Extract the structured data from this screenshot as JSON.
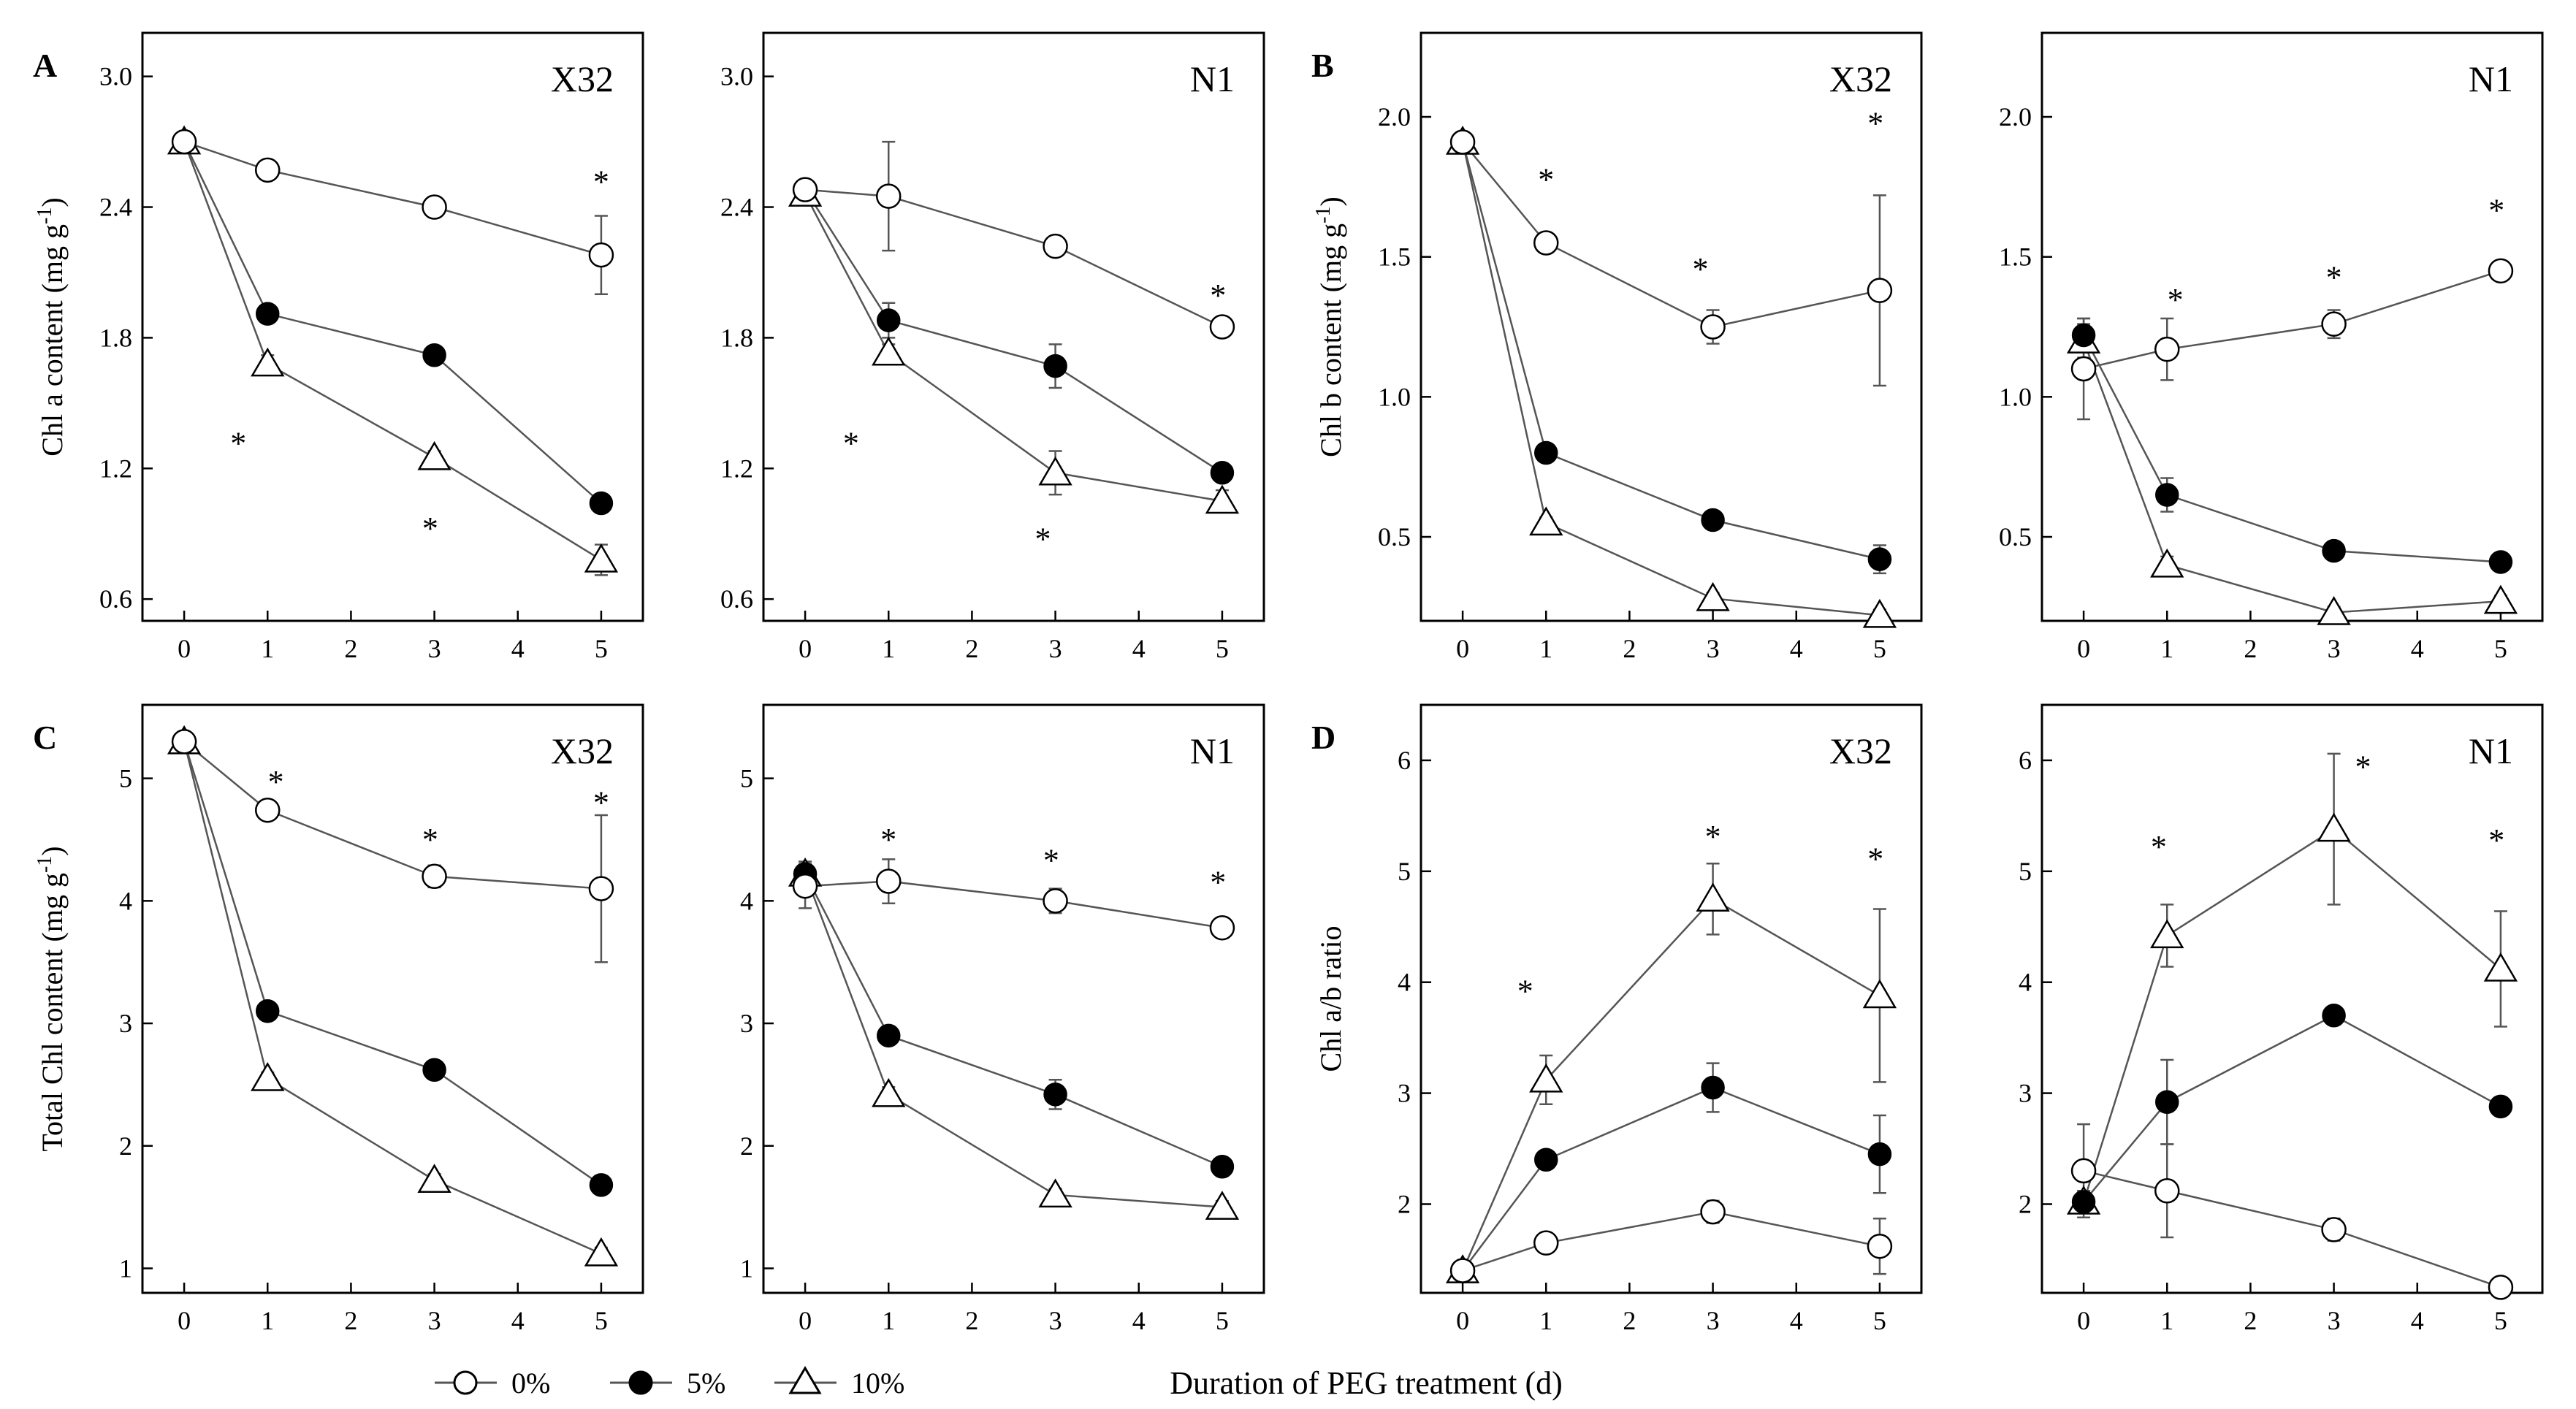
{
  "figure": {
    "xlabel": "Duration of PEG treatment (d)",
    "legend": [
      {
        "label": "0%",
        "marker": "open-circle"
      },
      {
        "label": "5%",
        "marker": "filled-circle"
      },
      {
        "label": "10%",
        "marker": "open-triangle"
      }
    ],
    "colors": {
      "line": "#555555",
      "ink": "#000000",
      "fill_open": "#ffffff"
    }
  },
  "chart_data": [
    {
      "type": "line",
      "letter": "A",
      "title": "X32",
      "ylabel": "Chl a content (mg g-1)",
      "xlim": [
        -0.5,
        5.5
      ],
      "xticks": [
        0,
        1,
        2,
        3,
        4,
        5
      ],
      "ylim": [
        0.5,
        3.2
      ],
      "yticks": [
        "0.6",
        "1.2",
        "1.8",
        "2.4",
        "3.0"
      ],
      "x": [
        0,
        1,
        3,
        5
      ],
      "series": [
        {
          "name": "0%",
          "values": [
            2.7,
            2.57,
            2.4,
            2.18
          ],
          "errors": [
            0.03,
            0.03,
            0.04,
            0.18
          ]
        },
        {
          "name": "5%",
          "values": [
            2.7,
            1.91,
            1.72,
            1.04
          ],
          "errors": [
            0.03,
            0.03,
            0.03,
            0.03
          ]
        },
        {
          "name": "10%",
          "values": [
            2.7,
            1.68,
            1.25,
            0.78
          ],
          "errors": [
            0.03,
            0.04,
            0.03,
            0.07
          ]
        }
      ],
      "stars": [
        {
          "x": 0.65,
          "y": 1.32
        },
        {
          "x": 2.95,
          "y": 0.93
        },
        {
          "x": 5.0,
          "y": 2.52
        }
      ]
    },
    {
      "type": "line",
      "letter": "",
      "title": "N1",
      "ylabel": "",
      "xlim": [
        -0.5,
        5.5
      ],
      "xticks": [
        0,
        1,
        2,
        3,
        4,
        5
      ],
      "ylim": [
        0.5,
        3.2
      ],
      "yticks": [
        "0.6",
        "1.2",
        "1.8",
        "2.4",
        "3.0"
      ],
      "x": [
        0,
        1,
        3,
        5
      ],
      "series": [
        {
          "name": "0%",
          "values": [
            2.48,
            2.45,
            2.22,
            1.85
          ],
          "errors": [
            0.03,
            0.25,
            0.04,
            0.03
          ]
        },
        {
          "name": "5%",
          "values": [
            2.48,
            1.88,
            1.67,
            1.18
          ],
          "errors": [
            0.03,
            0.08,
            0.1,
            0.03
          ]
        },
        {
          "name": "10%",
          "values": [
            2.46,
            1.73,
            1.18,
            1.05
          ],
          "errors": [
            0.03,
            0.04,
            0.1,
            0.05
          ]
        }
      ],
      "stars": [
        {
          "x": 0.55,
          "y": 1.32
        },
        {
          "x": 2.85,
          "y": 0.88
        },
        {
          "x": 4.95,
          "y": 2.0
        }
      ]
    },
    {
      "type": "line",
      "letter": "B",
      "title": "X32",
      "ylabel": "Chl b content (mg g-1)",
      "xlim": [
        -0.5,
        5.5
      ],
      "xticks": [
        0,
        1,
        2,
        3,
        4,
        5
      ],
      "ylim": [
        0.2,
        2.3
      ],
      "yticks": [
        "0.5",
        "1.0",
        "1.5",
        "2.0"
      ],
      "x": [
        0,
        1,
        3,
        5
      ],
      "series": [
        {
          "name": "0%",
          "values": [
            1.91,
            1.55,
            1.25,
            1.38
          ],
          "errors": [
            0.02,
            0.02,
            0.06,
            0.34
          ]
        },
        {
          "name": "5%",
          "values": [
            1.91,
            0.8,
            0.56,
            0.42
          ],
          "errors": [
            0.02,
            0.02,
            0.02,
            0.05
          ]
        },
        {
          "name": "10%",
          "values": [
            1.91,
            0.55,
            0.28,
            0.22
          ],
          "errors": [
            0.02,
            0.02,
            0.02,
            0.02
          ]
        }
      ],
      "stars": [
        {
          "x": 1.0,
          "y": 1.78
        },
        {
          "x": 2.85,
          "y": 1.46
        },
        {
          "x": 4.95,
          "y": 1.98
        }
      ]
    },
    {
      "type": "line",
      "letter": "",
      "title": "N1",
      "ylabel": "",
      "xlim": [
        -0.5,
        5.5
      ],
      "xticks": [
        0,
        1,
        2,
        3,
        4,
        5
      ],
      "ylim": [
        0.2,
        2.3
      ],
      "yticks": [
        "0.5",
        "1.0",
        "1.5",
        "2.0"
      ],
      "x": [
        0,
        1,
        3,
        5
      ],
      "series": [
        {
          "name": "0%",
          "values": [
            1.1,
            1.17,
            1.26,
            1.45
          ],
          "errors": [
            0.18,
            0.11,
            0.05,
            0.03
          ]
        },
        {
          "name": "5%",
          "values": [
            1.22,
            0.65,
            0.45,
            0.41
          ],
          "errors": [
            0.06,
            0.06,
            0.03,
            0.03
          ]
        },
        {
          "name": "10%",
          "values": [
            1.2,
            0.4,
            0.23,
            0.27
          ],
          "errors": [
            0.06,
            0.03,
            0.02,
            0.02
          ]
        }
      ],
      "stars": [
        {
          "x": 1.1,
          "y": 1.35
        },
        {
          "x": 3.0,
          "y": 1.43
        },
        {
          "x": 4.95,
          "y": 1.67
        }
      ]
    },
    {
      "type": "line",
      "letter": "C",
      "title": "X32",
      "ylabel": "Total Chl content (mg g-1)",
      "xlim": [
        -0.5,
        5.5
      ],
      "xticks": [
        0,
        1,
        2,
        3,
        4,
        5
      ],
      "ylim": [
        0.8,
        5.6
      ],
      "yticks": [
        "1",
        "2",
        "3",
        "4",
        "5"
      ],
      "x": [
        0,
        1,
        3,
        5
      ],
      "series": [
        {
          "name": "0%",
          "values": [
            5.3,
            4.74,
            4.2,
            4.1
          ],
          "errors": [
            0.05,
            0.05,
            0.09,
            0.6
          ]
        },
        {
          "name": "5%",
          "values": [
            5.3,
            3.1,
            2.62,
            1.68
          ],
          "errors": [
            0.05,
            0.05,
            0.05,
            0.05
          ]
        },
        {
          "name": "10%",
          "values": [
            5.3,
            2.55,
            1.72,
            1.12
          ],
          "errors": [
            0.05,
            0.05,
            0.05,
            0.05
          ]
        }
      ],
      "stars": [
        {
          "x": 1.1,
          "y": 4.98
        },
        {
          "x": 2.95,
          "y": 4.51
        },
        {
          "x": 5.0,
          "y": 4.81
        }
      ]
    },
    {
      "type": "line",
      "letter": "",
      "title": "N1",
      "ylabel": "",
      "xlim": [
        -0.5,
        5.5
      ],
      "xticks": [
        0,
        1,
        2,
        3,
        4,
        5
      ],
      "ylim": [
        0.8,
        5.6
      ],
      "yticks": [
        "1",
        "2",
        "3",
        "4",
        "5"
      ],
      "x": [
        0,
        1,
        3,
        5
      ],
      "series": [
        {
          "name": "0%",
          "values": [
            4.12,
            4.16,
            4.0,
            3.78
          ],
          "errors": [
            0.18,
            0.18,
            0.1,
            0.08
          ]
        },
        {
          "name": "5%",
          "values": [
            4.22,
            2.9,
            2.42,
            1.83
          ],
          "errors": [
            0.1,
            0.06,
            0.12,
            0.05
          ]
        },
        {
          "name": "10%",
          "values": [
            4.22,
            2.42,
            1.6,
            1.5
          ],
          "errors": [
            0.1,
            0.06,
            0.05,
            0.05
          ]
        }
      ],
      "stars": [
        {
          "x": 1.0,
          "y": 4.51
        },
        {
          "x": 2.95,
          "y": 4.34
        },
        {
          "x": 4.95,
          "y": 4.16
        }
      ]
    },
    {
      "type": "line",
      "letter": "D",
      "title": "X32",
      "ylabel": "Chl a/b ratio",
      "xlim": [
        -0.5,
        5.5
      ],
      "xticks": [
        0,
        1,
        2,
        3,
        4,
        5
      ],
      "ylim": [
        1.2,
        6.5
      ],
      "yticks": [
        "2",
        "3",
        "4",
        "5",
        "6"
      ],
      "x": [
        0,
        1,
        3,
        5
      ],
      "series": [
        {
          "name": "0%",
          "values": [
            1.4,
            1.65,
            1.93,
            1.62
          ],
          "errors": [
            0.05,
            0.08,
            0.1,
            0.25
          ]
        },
        {
          "name": "5%",
          "values": [
            1.4,
            2.4,
            3.05,
            2.45
          ],
          "errors": [
            0.05,
            0.06,
            0.22,
            0.35
          ]
        },
        {
          "name": "10%",
          "values": [
            1.4,
            3.12,
            4.75,
            3.88
          ],
          "errors": [
            0.05,
            0.22,
            0.32,
            0.78
          ]
        }
      ],
      "stars": [
        {
          "x": 0.75,
          "y": 3.93
        },
        {
          "x": 3.0,
          "y": 5.32
        },
        {
          "x": 4.95,
          "y": 5.12
        }
      ]
    },
    {
      "type": "line",
      "letter": "",
      "title": "N1",
      "ylabel": "",
      "xlim": [
        -0.5,
        5.5
      ],
      "xticks": [
        0,
        1,
        2,
        3,
        4,
        5
      ],
      "ylim": [
        1.2,
        6.5
      ],
      "yticks": [
        "2",
        "3",
        "4",
        "5",
        "6"
      ],
      "x": [
        0,
        1,
        3,
        5
      ],
      "series": [
        {
          "name": "0%",
          "values": [
            2.3,
            2.12,
            1.77,
            1.25
          ],
          "errors": [
            0.42,
            0.42,
            0.1,
            0.05
          ]
        },
        {
          "name": "5%",
          "values": [
            2.02,
            2.92,
            3.7,
            2.88
          ],
          "errors": [
            0.1,
            0.38,
            0.05,
            0.05
          ]
        },
        {
          "name": "10%",
          "values": [
            2.02,
            4.42,
            5.38,
            4.12
          ],
          "errors": [
            0.1,
            0.28,
            0.68,
            0.52
          ]
        }
      ],
      "stars": [
        {
          "x": 0.9,
          "y": 5.23
        },
        {
          "x": 3.35,
          "y": 5.95
        },
        {
          "x": 4.95,
          "y": 5.29
        }
      ]
    }
  ]
}
